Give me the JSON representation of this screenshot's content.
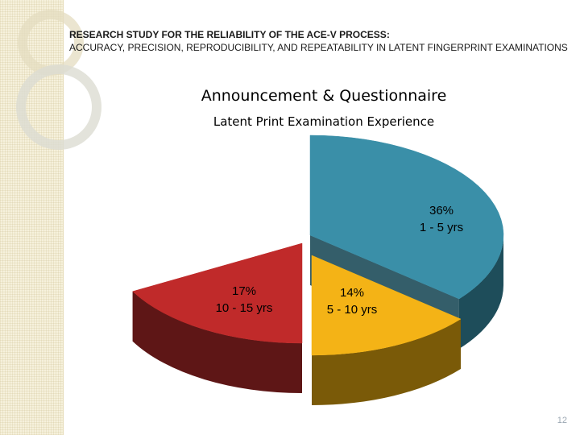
{
  "header": {
    "title": "RESEARCH STUDY FOR THE RELIABILITY OF THE ACE-V PROCESS:",
    "subtitle": "ACCURACY, PRECISION, REPRODUCIBILITY, AND REPEATABILITY IN LATENT FINGERPRINT EXAMINATIONS"
  },
  "page_number": "12",
  "chart_data": {
    "type": "pie",
    "title": "Announcement & Questionnaire",
    "subtitle": "Latent Print Examination Experience",
    "slices": [
      {
        "label": "1 - 5 yrs",
        "percent": "36%",
        "value": 36,
        "color": "#3a8fa8",
        "side_color": "#1e4d5a"
      },
      {
        "label": "5 - 10 yrs",
        "percent": "14%",
        "value": 14,
        "color": "#f4b316",
        "side_color": "#7a5a08"
      },
      {
        "label": "10 - 15 yrs",
        "percent": "17%",
        "value": 17,
        "color": "#c02a2a",
        "side_color": "#5e1616"
      }
    ],
    "legend": "none"
  }
}
